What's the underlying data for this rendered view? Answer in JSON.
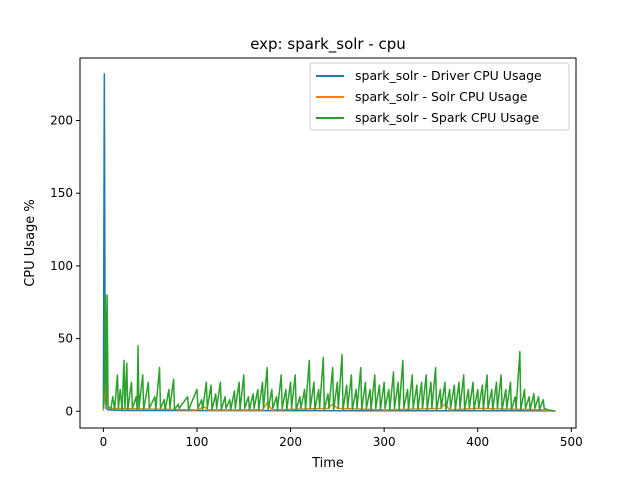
{
  "chart_data": {
    "type": "line",
    "title": "exp: spark_solr - cpu",
    "xlabel": "Time",
    "ylabel": "CPU Usage %",
    "xlim": [
      -25,
      505
    ],
    "ylim": [
      -11.5,
      243
    ],
    "xticks": [
      0,
      100,
      200,
      300,
      400,
      500
    ],
    "yticks": [
      0,
      50,
      100,
      150,
      200
    ],
    "grid": false,
    "legend_position": "top-right",
    "colors": {
      "driver": "#1f77b4",
      "solr": "#ff7f0e",
      "spark": "#2ca02c"
    },
    "series": [
      {
        "name": "spark_solr - Driver CPU Usage",
        "color": "#1f77b4",
        "points": [
          [
            0,
            0.5
          ],
          [
            1,
            232
          ],
          [
            2,
            12
          ],
          [
            3,
            2
          ],
          [
            5,
            1
          ],
          [
            20,
            0.5
          ],
          [
            480,
            0.3
          ]
        ]
      },
      {
        "name": "spark_solr - Solr CPU Usage",
        "color": "#ff7f0e",
        "points": [
          [
            0,
            1
          ],
          [
            3,
            20
          ],
          [
            5,
            2
          ],
          [
            100,
            1
          ],
          [
            108,
            3
          ],
          [
            112,
            1
          ],
          [
            170,
            1
          ],
          [
            175,
            6
          ],
          [
            180,
            1
          ],
          [
            240,
            2
          ],
          [
            245,
            5
          ],
          [
            250,
            2
          ],
          [
            300,
            1
          ],
          [
            360,
            2
          ],
          [
            365,
            5
          ],
          [
            370,
            1
          ],
          [
            400,
            2
          ],
          [
            470,
            1
          ],
          [
            483,
            0
          ]
        ]
      },
      {
        "name": "spark_solr - Spark CPU Usage",
        "color": "#2ca02c",
        "points": [
          [
            0,
            2
          ],
          [
            1,
            19
          ],
          [
            2,
            80
          ],
          [
            3,
            5
          ],
          [
            4,
            80
          ],
          [
            5,
            3
          ],
          [
            8,
            2
          ],
          [
            10,
            10
          ],
          [
            12,
            1
          ],
          [
            15,
            25
          ],
          [
            16,
            2
          ],
          [
            18,
            15
          ],
          [
            20,
            1
          ],
          [
            22,
            35
          ],
          [
            23,
            2
          ],
          [
            25,
            33
          ],
          [
            26,
            1
          ],
          [
            30,
            20
          ],
          [
            31,
            2
          ],
          [
            35,
            10
          ],
          [
            36,
            1
          ],
          [
            37,
            45
          ],
          [
            38,
            2
          ],
          [
            42,
            25
          ],
          [
            43,
            1
          ],
          [
            48,
            20
          ],
          [
            49,
            2
          ],
          [
            55,
            10
          ],
          [
            56,
            1
          ],
          [
            60,
            30
          ],
          [
            61,
            2
          ],
          [
            65,
            8
          ],
          [
            66,
            1
          ],
          [
            70,
            15
          ],
          [
            71,
            2
          ],
          [
            75,
            22
          ],
          [
            76,
            1
          ],
          [
            80,
            5
          ],
          [
            81,
            2
          ],
          [
            90,
            10
          ],
          [
            91,
            1
          ],
          [
            100,
            15
          ],
          [
            101,
            2
          ],
          [
            105,
            8
          ],
          [
            106,
            1
          ],
          [
            110,
            20
          ],
          [
            111,
            2
          ],
          [
            115,
            18
          ],
          [
            116,
            1
          ],
          [
            120,
            12
          ],
          [
            121,
            2
          ],
          [
            125,
            20
          ],
          [
            126,
            1
          ],
          [
            130,
            10
          ],
          [
            131,
            2
          ],
          [
            135,
            8
          ],
          [
            136,
            1
          ],
          [
            140,
            14
          ],
          [
            141,
            2
          ],
          [
            145,
            20
          ],
          [
            146,
            1
          ],
          [
            150,
            25
          ],
          [
            151,
            2
          ],
          [
            155,
            10
          ],
          [
            156,
            1
          ],
          [
            160,
            12
          ],
          [
            161,
            2
          ],
          [
            165,
            15
          ],
          [
            166,
            1
          ],
          [
            170,
            20
          ],
          [
            171,
            2
          ],
          [
            175,
            30
          ],
          [
            176,
            1
          ],
          [
            180,
            15
          ],
          [
            181,
            2
          ],
          [
            185,
            10
          ],
          [
            186,
            1
          ],
          [
            190,
            25
          ],
          [
            191,
            2
          ],
          [
            195,
            15
          ],
          [
            196,
            1
          ],
          [
            200,
            20
          ],
          [
            201,
            2
          ],
          [
            205,
            25
          ],
          [
            206,
            1
          ],
          [
            210,
            10
          ],
          [
            211,
            2
          ],
          [
            215,
            15
          ],
          [
            216,
            1
          ],
          [
            220,
            35
          ],
          [
            221,
            2
          ],
          [
            225,
            20
          ],
          [
            226,
            1
          ],
          [
            230,
            15
          ],
          [
            231,
            2
          ],
          [
            235,
            37
          ],
          [
            236,
            1
          ],
          [
            240,
            12
          ],
          [
            241,
            2
          ],
          [
            245,
            30
          ],
          [
            246,
            1
          ],
          [
            250,
            20
          ],
          [
            251,
            2
          ],
          [
            255,
            39
          ],
          [
            256,
            1
          ],
          [
            260,
            18
          ],
          [
            261,
            2
          ],
          [
            265,
            25
          ],
          [
            266,
            1
          ],
          [
            270,
            15
          ],
          [
            271,
            2
          ],
          [
            275,
            30
          ],
          [
            276,
            1
          ],
          [
            280,
            20
          ],
          [
            281,
            2
          ],
          [
            285,
            15
          ],
          [
            286,
            1
          ],
          [
            290,
            25
          ],
          [
            291,
            2
          ],
          [
            295,
            18
          ],
          [
            296,
            1
          ],
          [
            300,
            20
          ],
          [
            301,
            2
          ],
          [
            305,
            15
          ],
          [
            306,
            1
          ],
          [
            310,
            27
          ],
          [
            311,
            2
          ],
          [
            315,
            20
          ],
          [
            316,
            1
          ],
          [
            320,
            35
          ],
          [
            321,
            2
          ],
          [
            325,
            15
          ],
          [
            326,
            1
          ],
          [
            330,
            25
          ],
          [
            331,
            2
          ],
          [
            335,
            18
          ],
          [
            336,
            1
          ],
          [
            340,
            20
          ],
          [
            341,
            2
          ],
          [
            345,
            25
          ],
          [
            346,
            1
          ],
          [
            350,
            20
          ],
          [
            351,
            2
          ],
          [
            355,
            30
          ],
          [
            356,
            1
          ],
          [
            360,
            15
          ],
          [
            361,
            2
          ],
          [
            365,
            20
          ],
          [
            366,
            1
          ],
          [
            370,
            15
          ],
          [
            371,
            2
          ],
          [
            375,
            18
          ],
          [
            376,
            1
          ],
          [
            380,
            20
          ],
          [
            381,
            2
          ],
          [
            385,
            25
          ],
          [
            386,
            1
          ],
          [
            390,
            15
          ],
          [
            391,
            2
          ],
          [
            395,
            20
          ],
          [
            396,
            1
          ],
          [
            400,
            15
          ],
          [
            401,
            2
          ],
          [
            405,
            18
          ],
          [
            406,
            1
          ],
          [
            410,
            25
          ],
          [
            411,
            2
          ],
          [
            415,
            15
          ],
          [
            416,
            1
          ],
          [
            420,
            20
          ],
          [
            421,
            2
          ],
          [
            425,
            25
          ],
          [
            426,
            1
          ],
          [
            430,
            15
          ],
          [
            431,
            2
          ],
          [
            435,
            20
          ],
          [
            436,
            1
          ],
          [
            440,
            10
          ],
          [
            441,
            2
          ],
          [
            445,
            41
          ],
          [
            446,
            1
          ],
          [
            450,
            15
          ],
          [
            451,
            2
          ],
          [
            455,
            10
          ],
          [
            456,
            1
          ],
          [
            460,
            12
          ],
          [
            461,
            2
          ],
          [
            465,
            10
          ],
          [
            466,
            1
          ],
          [
            470,
            8
          ],
          [
            471,
            2
          ],
          [
            475,
            1
          ],
          [
            483,
            0
          ]
        ]
      }
    ]
  }
}
